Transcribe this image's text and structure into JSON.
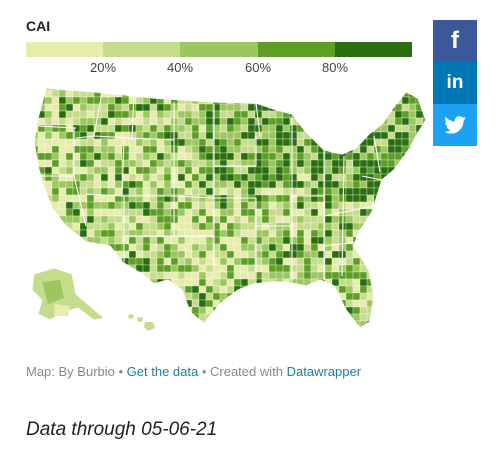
{
  "legend": {
    "title": "CAI",
    "colors": [
      "#e6ecab",
      "#c5dc8c",
      "#9bc75e",
      "#5d9e25",
      "#2a6e12"
    ],
    "ticks": [
      "20%",
      "40%",
      "60%",
      "80%"
    ]
  },
  "credits": {
    "prefix": "Map: By Burbio",
    "separator": " • ",
    "link1": "Get the data",
    "middle": "Created with",
    "link2": "Datawrapper"
  },
  "footer": {
    "data_through": "Data through 05-06-21"
  },
  "social": {
    "facebook_glyph": "f",
    "linkedin_glyph": "in",
    "colors": {
      "facebook": "#3b5998",
      "linkedin": "#0077b5",
      "twitter": "#1da1f2"
    }
  }
}
